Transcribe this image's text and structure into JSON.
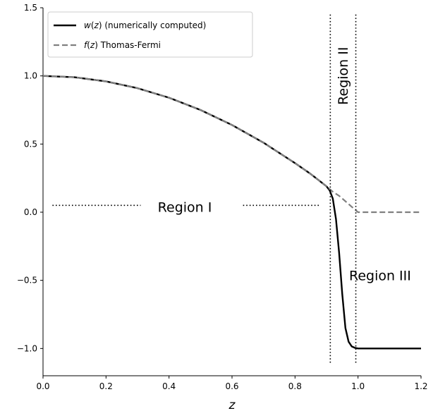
{
  "chart_data": {
    "type": "line",
    "title": "",
    "xlabel": "z",
    "ylabel": "",
    "xlim": [
      0.0,
      1.2
    ],
    "ylim": [
      -1.2,
      1.5
    ],
    "xticks": [
      0.0,
      0.2,
      0.4,
      0.6,
      0.8,
      1.0,
      1.2
    ],
    "xtick_labels": [
      "0.0",
      "0.2",
      "0.4",
      "0.6",
      "0.8",
      "1.0",
      "1.2"
    ],
    "yticks": [
      -1.0,
      -0.5,
      0.0,
      0.5,
      1.0,
      1.5
    ],
    "ytick_labels": [
      "−1.0",
      "−0.5",
      "0.0",
      "0.5",
      "1.0",
      "1.5"
    ],
    "grid": false,
    "legend": {
      "placement": "top-left",
      "entries": [
        {
          "label_prefix": "w",
          "label_var": "z",
          "label_suffix": " (numerically computed)"
        },
        {
          "label_prefix": "f",
          "label_var": "z",
          "label_suffix": " Thomas-Fermi"
        }
      ]
    },
    "series": [
      {
        "style": "solid",
        "color": "#000000",
        "x": [
          0.0,
          0.1,
          0.2,
          0.3,
          0.4,
          0.5,
          0.6,
          0.7,
          0.8,
          0.85,
          0.9,
          0.91,
          0.92,
          0.93,
          0.94,
          0.95,
          0.96,
          0.97,
          0.98,
          0.99,
          1.0,
          1.02,
          1.05,
          1.1,
          1.2
        ],
        "y": [
          1.0,
          0.99,
          0.96,
          0.91,
          0.84,
          0.75,
          0.64,
          0.51,
          0.36,
          0.28,
          0.19,
          0.16,
          0.1,
          -0.05,
          -0.3,
          -0.6,
          -0.85,
          -0.95,
          -0.985,
          -0.995,
          -1.0,
          -1.0,
          -1.0,
          -1.0,
          -1.0
        ]
      },
      {
        "style": "dashed",
        "color": "#808080",
        "x": [
          0.0,
          0.1,
          0.2,
          0.3,
          0.4,
          0.5,
          0.6,
          0.7,
          0.8,
          0.85,
          0.9,
          0.92,
          0.94,
          0.96,
          0.98,
          0.99,
          0.995,
          1.0,
          1.05,
          1.1,
          1.2
        ],
        "y": [
          1.0,
          0.99,
          0.96,
          0.91,
          0.84,
          0.75,
          0.64,
          0.51,
          0.36,
          0.28,
          0.19,
          0.15,
          0.12,
          0.08,
          0.04,
          0.02,
          0.01,
          0.0,
          0.0,
          0.0,
          0.0
        ]
      }
    ],
    "vlines": [
      {
        "x": 0.912,
        "ymin": -1.12,
        "ymax": 1.45,
        "style": "dotted"
      },
      {
        "x": 0.993,
        "ymin": -1.12,
        "ymax": 1.45,
        "style": "dotted"
      }
    ],
    "hlines": [
      {
        "y": 0.05,
        "xmin": 0.03,
        "xmax": 0.31,
        "style": "dotted"
      },
      {
        "y": 0.05,
        "xmin": 0.635,
        "xmax": 0.88,
        "style": "dotted"
      }
    ],
    "annotations": [
      {
        "text": "Region I",
        "x": 0.45,
        "y": 0.03,
        "rotation": 0
      },
      {
        "text": "Region II",
        "x": 0.955,
        "y": 1.0,
        "rotation": -90
      },
      {
        "text": "Region III",
        "x": 1.07,
        "y": -0.47,
        "rotation": 0
      }
    ]
  }
}
